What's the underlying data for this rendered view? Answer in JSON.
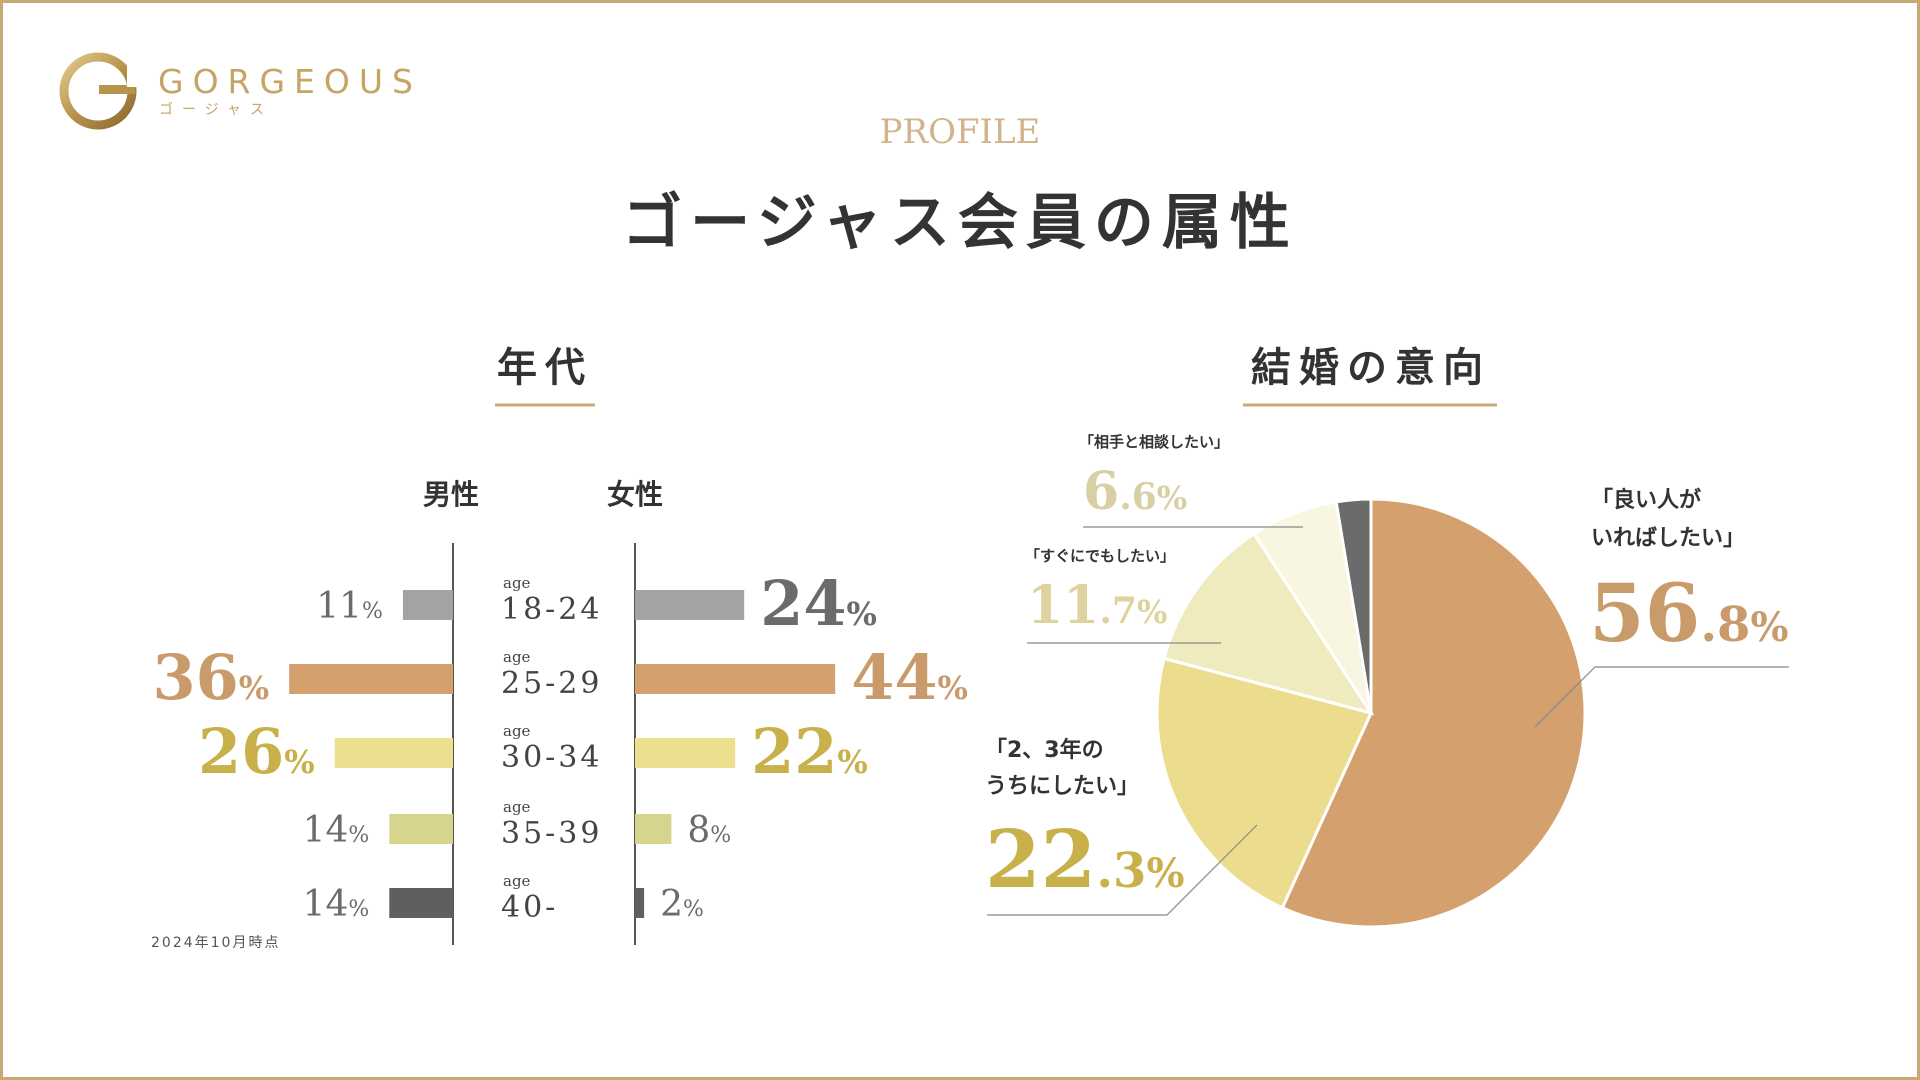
{
  "brand": {
    "name": "GORGEOUS",
    "kana": "ゴージャス",
    "colors": {
      "gold": "#c5a464",
      "frame": "#c9a878"
    }
  },
  "header": {
    "eyebrow": "PROFILE",
    "title": "ゴージャス会員の属性"
  },
  "age_section": {
    "title": "年代",
    "male_label": "男性",
    "female_label": "女性",
    "footnote": "2024年10月時点",
    "age_prefix": "age",
    "percent_unit": "%"
  },
  "marriage_section": {
    "title": "結婚の意向",
    "percent_unit": "%"
  },
  "chart_data": [
    {
      "type": "bar",
      "orientation": "horizontal-butterfly",
      "categories": [
        "18-24",
        "25-29",
        "30-34",
        "35-39",
        "40-"
      ],
      "series": [
        {
          "name": "男性",
          "values": [
            11,
            36,
            26,
            14,
            14
          ]
        },
        {
          "name": "女性",
          "values": [
            24,
            44,
            22,
            8,
            2
          ]
        }
      ],
      "colors": [
        "#a3a3a3",
        "#d3a06e",
        "#ece08f",
        "#d7d48e",
        "#5f5f5f"
      ],
      "label_colors": [
        "#6b6b6b",
        "#c99a6a",
        "#c8b04a",
        "#6b6b6b",
        "#6b6b6b"
      ]
    },
    {
      "type": "pie",
      "slices": [
        {
          "label": "「良い人が いればしたい」",
          "label_lines": [
            "「良い人が",
            "いればしたい」"
          ],
          "value": 56.8,
          "int": "56",
          "dec": ".8",
          "color": "#d3a06e",
          "label_color": "#c99a6a"
        },
        {
          "label": "「2、3年の うちにしたい」",
          "label_lines": [
            "「2、3年の",
            "うちにしたい」"
          ],
          "value": 22.3,
          "int": "22",
          "dec": ".3",
          "color": "#ebdd8d",
          "label_color": "#c8b04a"
        },
        {
          "label": "「すぐにでもしたい」",
          "label_lines": [
            "「すぐにでもしたい」"
          ],
          "value": 11.7,
          "int": "11",
          "dec": ".7",
          "color": "#f0ebbf",
          "label_color": "#ded39e"
        },
        {
          "label": "「相手と相談したい」",
          "label_lines": [
            "「相手と相談したい」"
          ],
          "value": 6.6,
          "int": "6",
          "dec": ".6",
          "color": "#f8f6e1",
          "label_color": "#d9cfa4"
        },
        {
          "label": "",
          "label_lines": [],
          "value": 2.6,
          "int": "",
          "dec": "",
          "color": "#6b6b6b",
          "label_color": "#6b6b6b"
        }
      ]
    }
  ]
}
